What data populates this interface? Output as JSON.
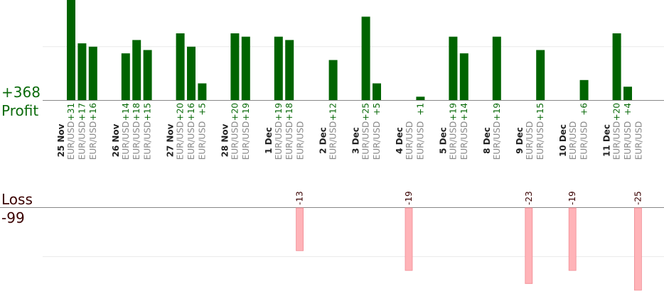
{
  "labels": {
    "profit_total": "+368",
    "profit_word": "Profit",
    "loss_word": "Loss",
    "loss_total": "-99"
  },
  "colors": {
    "profit_bar": "#006400",
    "profit_text": "#0b6b0b",
    "loss_bar": "#ffb3b8",
    "loss_bar_edge": "#f08c94",
    "loss_text": "#3a0000",
    "pair_text": "#8a8a8a",
    "date_text": "#222222",
    "axis": "#888888",
    "grid": "#e9e9e9"
  },
  "chart_data": {
    "type": "bar",
    "title": "",
    "profit_axis_ylim": [
      0,
      30
    ],
    "loss_axis_ylim": [
      -25,
      0
    ],
    "grid": true,
    "dates": [
      {
        "label": "25 Nov",
        "trades": [
          {
            "pair": "EUR/USD",
            "value": 31
          },
          {
            "pair": "EUR/USD",
            "value": 17
          },
          {
            "pair": "EUR/USD",
            "value": 16
          }
        ]
      },
      {
        "label": "26 Nov",
        "trades": [
          {
            "pair": "EUR/USD",
            "value": 14
          },
          {
            "pair": "EUR/USD",
            "value": 18
          },
          {
            "pair": "EUR/USD",
            "value": 15
          }
        ]
      },
      {
        "label": "27 Nov",
        "trades": [
          {
            "pair": "EUR/USD",
            "value": 20
          },
          {
            "pair": "EUR/USD",
            "value": 16
          },
          {
            "pair": "EUR/USD",
            "value": 5
          }
        ]
      },
      {
        "label": "28 Nov",
        "trades": [
          {
            "pair": "EUR/USD",
            "value": 20
          },
          {
            "pair": "EUR/USD",
            "value": 19
          }
        ]
      },
      {
        "label": "1 Dec",
        "trades": [
          {
            "pair": "EUR/USD",
            "value": 19
          },
          {
            "pair": "EUR/USD",
            "value": 18
          },
          {
            "pair": "EUR/USD",
            "value": -13
          }
        ]
      },
      {
        "label": "2 Dec",
        "trades": [
          {
            "pair": "EUR/USD",
            "value": 12
          }
        ]
      },
      {
        "label": "3 Dec",
        "trades": [
          {
            "pair": "EUR/USD",
            "value": 25
          },
          {
            "pair": "EUR/USD",
            "value": 5
          }
        ]
      },
      {
        "label": "4 Dec",
        "trades": [
          {
            "pair": "EUR/USD",
            "value": -19
          },
          {
            "pair": "EUR/USD",
            "value": 1
          }
        ]
      },
      {
        "label": "5 Dec",
        "trades": [
          {
            "pair": "EUR/USD",
            "value": 19
          },
          {
            "pair": "EUR/USD",
            "value": 14
          }
        ]
      },
      {
        "label": "8 Dec",
        "trades": [
          {
            "pair": "EUR/USD",
            "value": 19
          }
        ]
      },
      {
        "label": "9 Dec",
        "trades": [
          {
            "pair": "EUR/USD",
            "value": -23
          },
          {
            "pair": "EUR/USD",
            "value": 15
          }
        ]
      },
      {
        "label": "10 Dec",
        "trades": [
          {
            "pair": "EUR/USD",
            "value": -19
          },
          {
            "pair": "EUR/USD",
            "value": 6
          }
        ]
      },
      {
        "label": "11 Dec",
        "trades": [
          {
            "pair": "EUR/USD",
            "value": 20
          },
          {
            "pair": "EUR/USD",
            "value": 4
          },
          {
            "pair": "EUR/USD",
            "value": -25
          }
        ]
      }
    ]
  }
}
